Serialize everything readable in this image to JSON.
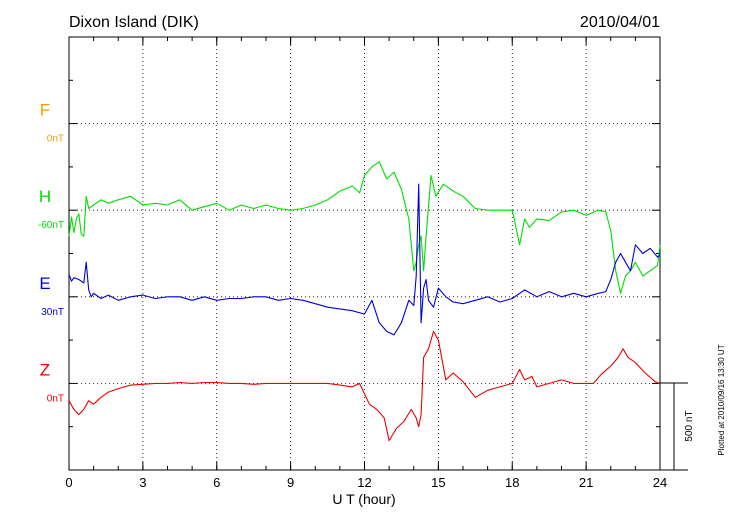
{
  "chart_data": {
    "type": "line",
    "title": "Dixon Island (DIK)",
    "date": "2010/04/01",
    "xlabel": "U T (hour)",
    "xlim": [
      0,
      24
    ],
    "xticks": [
      "0",
      "3",
      "6",
      "9",
      "12",
      "15",
      "18",
      "21",
      "24"
    ],
    "scale_bar": "500 nT",
    "plotted_note": "Plotted at 2010/09/16 13:30 UT",
    "grid": true,
    "series": [
      {
        "name": "F",
        "baseline": "0nT",
        "color": "#ff9900",
        "x": [],
        "y": []
      },
      {
        "name": "H",
        "baseline": "-60nT",
        "color": "#00dd00",
        "x": [
          0,
          0.1,
          0.2,
          0.3,
          0.4,
          0.5,
          0.6,
          0.7,
          0.8,
          1,
          1.3,
          1.6,
          2,
          2.5,
          3,
          3.5,
          4,
          4.5,
          5,
          5.5,
          6,
          6.5,
          7,
          7.5,
          8,
          8.5,
          9,
          9.5,
          10,
          10.5,
          11,
          11.5,
          11.8,
          12,
          12.3,
          12.6,
          12.9,
          13.2,
          13.5,
          13.8,
          14,
          14.1,
          14.2,
          14.3,
          14.4,
          14.5,
          14.7,
          14.9,
          15.2,
          15.6,
          16,
          16.5,
          17,
          17.5,
          18,
          18.3,
          18.5,
          18.7,
          19,
          19.5,
          20,
          20.5,
          21,
          21.5,
          21.8,
          22,
          22.2,
          22.4,
          22.6,
          22.8,
          23,
          23.3,
          23.6,
          23.9,
          24
        ],
        "y": [
          -150,
          -40,
          -130,
          -50,
          -20,
          -140,
          -150,
          80,
          10,
          30,
          60,
          40,
          60,
          80,
          30,
          40,
          30,
          60,
          0,
          20,
          40,
          0,
          30,
          10,
          30,
          10,
          0,
          10,
          30,
          60,
          110,
          140,
          100,
          200,
          250,
          280,
          180,
          220,
          120,
          -50,
          -350,
          -300,
          -200,
          -150,
          -350,
          -150,
          200,
          80,
          150,
          110,
          80,
          10,
          0,
          0,
          0,
          -200,
          -50,
          -100,
          -50,
          -60,
          -10,
          0,
          -30,
          0,
          -10,
          -120,
          -350,
          -480,
          -380,
          -350,
          -300,
          -380,
          -350,
          -320,
          -200
        ]
      },
      {
        "name": "E",
        "baseline": "30nT",
        "color": "#0000dd",
        "x": [
          0,
          0.1,
          0.2,
          0.4,
          0.6,
          0.7,
          0.8,
          0.9,
          1,
          1.3,
          1.6,
          2,
          2.5,
          3,
          3.5,
          4,
          4.5,
          5,
          5.5,
          6,
          6.5,
          7,
          7.5,
          8,
          8.5,
          9,
          9.5,
          10,
          10.5,
          11,
          11.5,
          12,
          12.3,
          12.6,
          12.9,
          13.2,
          13.5,
          13.8,
          14,
          14.1,
          14.2,
          14.3,
          14.4,
          14.5,
          14.6,
          14.8,
          15,
          15.3,
          15.6,
          16,
          16.5,
          17,
          17.5,
          18,
          18.5,
          19,
          19.5,
          20,
          20.5,
          21,
          21.5,
          21.8,
          22,
          22.2,
          22.4,
          22.6,
          22.8,
          23,
          23.3,
          23.6,
          23.9,
          24
        ],
        "y": [
          130,
          90,
          110,
          100,
          80,
          200,
          40,
          0,
          20,
          -10,
          10,
          -20,
          0,
          10,
          -10,
          0,
          0,
          -20,
          0,
          -20,
          -10,
          -10,
          0,
          0,
          -20,
          -10,
          -20,
          -40,
          -60,
          -70,
          -80,
          -100,
          -20,
          -150,
          -200,
          -220,
          -150,
          -20,
          -50,
          120,
          650,
          -150,
          50,
          100,
          -20,
          -60,
          50,
          0,
          -30,
          -40,
          -20,
          0,
          -30,
          -10,
          40,
          0,
          30,
          0,
          20,
          0,
          20,
          30,
          100,
          200,
          250,
          200,
          150,
          300,
          250,
          280,
          230,
          240
        ]
      },
      {
        "name": "Z",
        "baseline": "0nT",
        "color": "#ee0000",
        "x": [
          0,
          0.2,
          0.4,
          0.6,
          0.8,
          1,
          1.3,
          1.6,
          2,
          2.5,
          3,
          3.5,
          4,
          4.5,
          5,
          5.5,
          6,
          6.5,
          7,
          7.5,
          8,
          8.5,
          9,
          9.5,
          10,
          10.5,
          11,
          11.5,
          11.8,
          12,
          12.2,
          12.5,
          12.8,
          13,
          13.3,
          13.6,
          13.9,
          14.1,
          14.2,
          14.3,
          14.4,
          14.6,
          14.8,
          15,
          15.3,
          15.6,
          16,
          16.5,
          17,
          17.5,
          18,
          18.3,
          18.5,
          18.8,
          19,
          19.5,
          20,
          20.5,
          21,
          21.3,
          21.6,
          22,
          22.3,
          22.5,
          22.7,
          23,
          23.4,
          23.8,
          24
        ],
        "y": [
          -100,
          -150,
          -180,
          -150,
          -100,
          -120,
          -80,
          -50,
          -30,
          -10,
          -5,
          0,
          0,
          5,
          0,
          5,
          5,
          0,
          0,
          -5,
          0,
          0,
          0,
          0,
          0,
          0,
          -10,
          -20,
          0,
          -60,
          -120,
          -150,
          -200,
          -330,
          -260,
          -220,
          -150,
          -200,
          -250,
          -180,
          150,
          200,
          300,
          250,
          20,
          60,
          10,
          -80,
          -40,
          -20,
          0,
          80,
          20,
          40,
          -20,
          0,
          20,
          0,
          0,
          0,
          50,
          100,
          150,
          200,
          150,
          120,
          60,
          10,
          0
        ]
      }
    ]
  }
}
